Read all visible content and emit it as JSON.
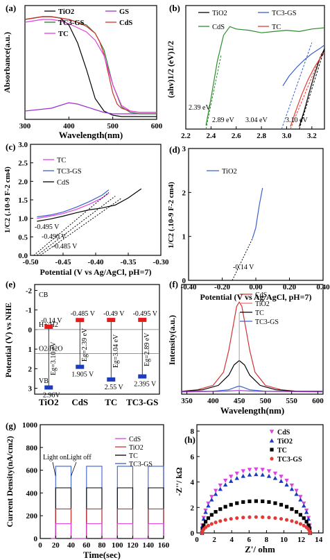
{
  "chart_data": [
    {
      "panel": "(a)",
      "type": "line",
      "xlabel": "Wavelength(nm)",
      "ylabel": "Absorbance(a.u.)",
      "xlim": [
        300,
        600
      ],
      "xticks": [
        300,
        400,
        500,
        600
      ],
      "legend": [
        {
          "name": "TiO2",
          "color": "#000000"
        },
        {
          "name": "GS",
          "color": "#9b30d0"
        },
        {
          "name": "TC3-GS",
          "color": "#2e7d32"
        },
        {
          "name": "CdS",
          "color": "#d32f2f"
        },
        {
          "name": "TC",
          "color": "#e040e0"
        }
      ],
      "series": [
        {
          "name": "TiO2",
          "color": "#000000",
          "x": [
            300,
            320,
            340,
            360,
            380,
            400,
            420,
            440,
            460,
            480,
            500,
            520,
            540,
            560,
            580,
            600
          ],
          "y": [
            0.72,
            0.73,
            0.74,
            0.74,
            0.73,
            0.68,
            0.55,
            0.36,
            0.15,
            0.06,
            0.03,
            0.02,
            0.02,
            0.02,
            0.02,
            0.02
          ]
        },
        {
          "name": "GS",
          "color": "#9b30d0",
          "x": [
            300,
            330,
            360,
            380,
            400,
            420,
            440,
            460,
            480,
            500,
            520,
            540,
            560,
            580,
            600
          ],
          "y": [
            0.06,
            0.07,
            0.08,
            0.1,
            0.12,
            0.11,
            0.09,
            0.07,
            0.05,
            0.04,
            0.04,
            0.04,
            0.04,
            0.04,
            0.04
          ]
        },
        {
          "name": "TC3-GS",
          "color": "#2e7d32",
          "x": [
            300,
            320,
            340,
            360,
            380,
            400,
            420,
            440,
            460,
            480,
            500,
            520,
            540,
            560,
            580,
            600
          ],
          "y": [
            0.72,
            0.73,
            0.74,
            0.74,
            0.73,
            0.72,
            0.7,
            0.68,
            0.62,
            0.5,
            0.25,
            0.09,
            0.05,
            0.04,
            0.04,
            0.04
          ]
        },
        {
          "name": "CdS",
          "color": "#d32f2f",
          "x": [
            300,
            320,
            340,
            360,
            380,
            400,
            420,
            440,
            460,
            470,
            480,
            490,
            500,
            510,
            520,
            540,
            560,
            580,
            600
          ],
          "y": [
            0.72,
            0.73,
            0.74,
            0.74,
            0.73,
            0.72,
            0.7,
            0.67,
            0.62,
            0.56,
            0.47,
            0.33,
            0.19,
            0.11,
            0.08,
            0.06,
            0.05,
            0.05,
            0.05
          ]
        },
        {
          "name": "TC",
          "color": "#e040e0",
          "x": [
            300,
            320,
            340,
            360,
            380,
            400,
            420,
            440,
            460,
            480,
            500,
            520,
            540,
            560,
            580,
            600
          ],
          "y": [
            0.7,
            0.71,
            0.72,
            0.72,
            0.71,
            0.69,
            0.66,
            0.63,
            0.57,
            0.46,
            0.25,
            0.1,
            0.06,
            0.05,
            0.05,
            0.05
          ]
        }
      ]
    },
    {
      "panel": "(b)",
      "type": "line",
      "xlabel": "",
      "ylabel": "(ahv)1/2 (eV)1/2",
      "xlim": [
        2.2,
        3.3
      ],
      "xticks": [
        "2.2",
        "2.4",
        "2.6",
        "2.8",
        "3.0",
        "3.2"
      ],
      "legend": [
        {
          "name": "TiO2",
          "color": "#000000"
        },
        {
          "name": "TC3-GS",
          "color": "#3a5fcd"
        },
        {
          "name": "CdS",
          "color": "#2e8b2e"
        },
        {
          "name": "TC",
          "color": "#e53935"
        }
      ],
      "annotations": [
        "2.39 eV",
        "2.89 eV",
        "3.04 eV",
        "3.10 eV"
      ],
      "series": [
        {
          "name": "CdS",
          "color": "#2e8b2e",
          "x": [
            2.36,
            2.4,
            2.45,
            2.5,
            2.55,
            2.6,
            2.7,
            2.8,
            2.9,
            3.0,
            3.1,
            3.2,
            3.3
          ],
          "y": [
            0.3,
            2.5,
            5.5,
            7.6,
            8.3,
            8.1,
            8.0,
            7.8,
            7.9,
            8.0,
            7.9,
            8.1,
            8.2
          ]
        },
        {
          "name": "TC3-GS",
          "color": "#3a5fcd",
          "x": [
            2.97,
            3.02,
            3.08,
            3.14,
            3.2,
            3.26,
            3.3
          ],
          "y": [
            3.5,
            4.3,
            5.0,
            5.6,
            6.1,
            6.5,
            6.8
          ]
        },
        {
          "name": "TiO2",
          "color": "#000000",
          "x": [
            3.1,
            3.14,
            3.18,
            3.22,
            3.26,
            3.3
          ],
          "y": [
            0.2,
            1.5,
            3.0,
            4.4,
            5.6,
            6.5
          ]
        },
        {
          "name": "TC",
          "color": "#e53935",
          "x": [
            3.03,
            3.07,
            3.12,
            3.17,
            3.22,
            3.27,
            3.3
          ],
          "y": [
            0.2,
            1.4,
            2.8,
            4.0,
            5.0,
            5.8,
            6.2
          ]
        }
      ]
    },
    {
      "panel": "(c)",
      "type": "line",
      "xlabel": "Potential (V vs Ag/AgCl, pH=7)",
      "ylabel": "1/C2 (.10-9 F-2 cm4)",
      "xlim": [
        -0.5,
        -0.3
      ],
      "ylim": [
        0,
        3.0
      ],
      "xticks": [
        "-0.50",
        "-0.45",
        "-0.40",
        "-0.35",
        "-0.30"
      ],
      "yticks": [
        "0.0",
        "0.5",
        "1.0",
        "1.5",
        "2.0",
        "2.5",
        "3.0"
      ],
      "legend": [
        {
          "name": "TC",
          "color": "#e040e0"
        },
        {
          "name": "TC3-GS",
          "color": "#3a5fcd"
        },
        {
          "name": "CdS",
          "color": "#000000"
        }
      ],
      "annotations": [
        "-0.495 V",
        "-0.490 V",
        "-0.485 V"
      ],
      "series": [
        {
          "name": "TC3-GS",
          "color": "#3a5fcd",
          "x": [
            -0.49,
            -0.47,
            -0.45,
            -0.43,
            -0.41,
            -0.39,
            -0.38
          ],
          "y": [
            1.04,
            1.09,
            1.17,
            1.3,
            1.45,
            1.63,
            1.77
          ]
        },
        {
          "name": "TC",
          "color": "#e040e0",
          "x": [
            -0.49,
            -0.47,
            -0.45,
            -0.43,
            -0.41,
            -0.39,
            -0.38
          ],
          "y": [
            1.0,
            1.06,
            1.13,
            1.24,
            1.38,
            1.55,
            1.68
          ]
        },
        {
          "name": "CdS",
          "color": "#000000",
          "x": [
            -0.49,
            -0.47,
            -0.45,
            -0.43,
            -0.41,
            -0.39,
            -0.37,
            -0.35,
            -0.33
          ],
          "y": [
            0.92,
            0.98,
            1.06,
            1.15,
            1.23,
            1.28,
            1.36,
            1.55,
            1.8
          ]
        }
      ]
    },
    {
      "panel": "(d)",
      "type": "line",
      "xlabel": "Potential (V vs Ag/AgCl, pH=7)",
      "ylabel": "1/C2 (.10-9 F-2 cm4)",
      "xlim": [
        -0.4,
        0.4
      ],
      "ylim": [
        0,
        3
      ],
      "xticks": [
        "-0.40",
        "-0.20",
        "0.00",
        "0.20",
        "0.40"
      ],
      "yticks": [
        "0",
        "1",
        "2",
        "3"
      ],
      "legend": [
        {
          "name": "TiO2",
          "color": "#3a5fcd"
        }
      ],
      "annotations": [
        "-0.14 V"
      ],
      "series": [
        {
          "name": "TiO2",
          "color": "#3a5fcd",
          "x": [
            -0.02,
            0.0,
            0.01,
            0.02,
            0.03,
            0.04
          ],
          "y": [
            0.95,
            1.2,
            1.45,
            1.7,
            1.9,
            2.1
          ]
        }
      ]
    },
    {
      "panel": "(e)",
      "type": "diagram",
      "ylabel": "Potential (V) vs NHE",
      "ylim": [
        -2,
        3
      ],
      "yticks": [
        "-2",
        "-1",
        "0",
        "1",
        "2",
        "3"
      ],
      "labels": {
        "cb": "CB",
        "vb": "VB",
        "h_level": "H+/H2",
        "o_level": "O2/H2O"
      },
      "materials": [
        {
          "name": "TiO2",
          "cb_label": "-0.14 V",
          "vb_label": "2.96V",
          "eg_label": "Eg=3.10 eV"
        },
        {
          "name": "CdS",
          "cb_label": "-0.485 V",
          "vb_label": "1.905 V",
          "eg_label": "Eg=2.39 eV"
        },
        {
          "name": "TC",
          "cb_label": "-0.49 V",
          "vb_label": "2.55 V",
          "eg_label": "Eg=3.04 eV"
        },
        {
          "name": "TC3-GS",
          "cb_label": "-0.495 V",
          "vb_label": "2.395 V",
          "eg_label": "Eg=2.89 eV"
        }
      ],
      "cb_values": [
        -0.14,
        -0.485,
        -0.49,
        -0.495
      ],
      "vb_values": [
        2.96,
        1.905,
        2.55,
        2.395
      ],
      "h_level_value": 0.0,
      "o_level_value": 1.23
    },
    {
      "panel": "(f)",
      "type": "line",
      "xlabel": "Wavelength(nm)",
      "ylabel": "Intensity(a.u.)",
      "xlim": [
        340,
        610
      ],
      "xticks": [
        "350",
        "400",
        "450",
        "500",
        "550",
        "600"
      ],
      "legend": [
        {
          "name": "CdS",
          "color": "#d32f2f"
        },
        {
          "name": "TiO2",
          "color": "#e57373"
        },
        {
          "name": "TC",
          "color": "#000000"
        },
        {
          "name": "TC3-GS",
          "color": "#3a5fcd"
        }
      ],
      "series": [
        {
          "name": "TiO2",
          "color": "#d32f2f",
          "x": [
            340,
            370,
            400,
            420,
            430,
            440,
            445,
            450,
            455,
            460,
            470,
            480,
            500,
            530,
            560,
            610
          ],
          "y": [
            0.02,
            0.03,
            0.06,
            0.15,
            0.3,
            0.5,
            0.6,
            0.63,
            0.6,
            0.5,
            0.3,
            0.15,
            0.06,
            0.03,
            0.02,
            0.02
          ]
        },
        {
          "name": "TC",
          "color": "#000000",
          "x": [
            340,
            380,
            410,
            430,
            440,
            450,
            460,
            470,
            490,
            520,
            560,
            610
          ],
          "y": [
            0.02,
            0.03,
            0.06,
            0.13,
            0.2,
            0.23,
            0.2,
            0.13,
            0.06,
            0.03,
            0.02,
            0.02
          ]
        },
        {
          "name": "TC3-GS",
          "color": "#3a5fcd",
          "x": [
            340,
            400,
            430,
            445,
            450,
            455,
            470,
            500,
            610
          ],
          "y": [
            0.02,
            0.02,
            0.03,
            0.05,
            0.055,
            0.05,
            0.03,
            0.02,
            0.02
          ]
        },
        {
          "name": "CdS",
          "color": "#9b30d0",
          "x": [
            340,
            420,
            450,
            480,
            610
          ],
          "y": [
            0.015,
            0.02,
            0.025,
            0.02,
            0.015
          ]
        }
      ]
    },
    {
      "panel": "(g)",
      "type": "line",
      "xlabel": "Time(sec)",
      "ylabel": "Current Density(nA/cm2)",
      "xlim": [
        0,
        160
      ],
      "ylim": [
        0,
        1000
      ],
      "xticks": [
        "0",
        "20",
        "40",
        "60",
        "80",
        "100",
        "120",
        "140",
        "160"
      ],
      "yticks": [
        "0",
        "200",
        "400",
        "600",
        "800",
        "1000"
      ],
      "annotations": [
        "Light on",
        "Light off"
      ],
      "legend": [
        {
          "name": "CdS",
          "color": "#e040e0"
        },
        {
          "name": "TiO2",
          "color": "#d32f2f"
        },
        {
          "name": "TC",
          "color": "#000000"
        },
        {
          "name": "TC3-GS",
          "color": "#3a5fcd"
        }
      ],
      "on_intervals": [
        [
          20,
          40
        ],
        [
          60,
          80
        ],
        [
          100,
          120
        ],
        [
          140,
          160
        ]
      ],
      "series": [
        {
          "name": "TC3-GS",
          "color": "#3a5fcd",
          "on": 635,
          "off": 0
        },
        {
          "name": "TC",
          "color": "#000000",
          "on": 445,
          "off": 0
        },
        {
          "name": "TiO2",
          "color": "#d32f2f",
          "on": 260,
          "off": 0
        },
        {
          "name": "CdS",
          "color": "#e040e0",
          "on": 130,
          "off": 0
        }
      ]
    },
    {
      "panel": "(h)",
      "type": "scatter",
      "xlabel": "Z'/ ohm",
      "ylabel": "-Z''/ kΩ",
      "xlim": [
        0,
        14.5
      ],
      "ylim": [
        0,
        8.5
      ],
      "xticks": [
        "0",
        "2",
        "4",
        "6",
        "8",
        "10",
        "12",
        "14"
      ],
      "yticks": [
        "0",
        "2",
        "4",
        "6",
        "8"
      ],
      "legend": [
        {
          "name": "CdS",
          "color": "#e040e0",
          "marker": "triangle-down"
        },
        {
          "name": "TiO2",
          "color": "#1a3cbd",
          "marker": "triangle-up"
        },
        {
          "name": "TC",
          "color": "#000000",
          "marker": "square"
        },
        {
          "name": "TC3-GS",
          "color": "#e53935",
          "marker": "circle"
        }
      ],
      "series": [
        {
          "name": "CdS",
          "center": 6.8,
          "radius": 6.2,
          "peak": 5.0
        },
        {
          "name": "TiO2",
          "center": 6.8,
          "radius": 6.2,
          "peak": 4.6
        },
        {
          "name": "TC",
          "center": 6.8,
          "radius": 6.2,
          "peak": 2.5
        },
        {
          "name": "TC3-GS",
          "center": 6.8,
          "radius": 6.2,
          "peak": 1.25
        }
      ]
    }
  ]
}
